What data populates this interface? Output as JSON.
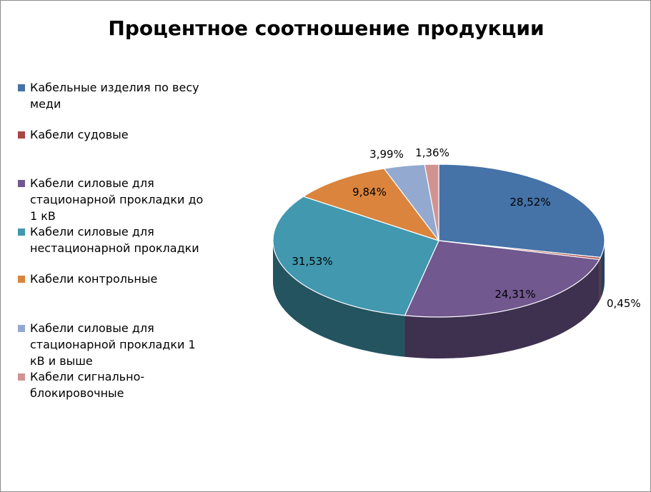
{
  "chart_data": {
    "type": "pie",
    "title": "Процентное соотношение продукции",
    "legend_position": "left",
    "slices": [
      {
        "name": "Кабельные изделия по весу меди",
        "value": 28.52,
        "label": "28,52%",
        "color": "#4572A7"
      },
      {
        "name": "Кабели судовые",
        "value": 0.45,
        "label": "0,45%",
        "color": "#AA4643"
      },
      {
        "name": "Кабели силовые для стационарной прокладки до 1 кВ",
        "value": 24.31,
        "label": "24,31%",
        "color": "#71588F"
      },
      {
        "name": "Кабели силовые для нестационарной прокладки",
        "value": 31.53,
        "label": "31,53%",
        "color": "#4198AF"
      },
      {
        "name": "Кабели контрольные",
        "value": 9.84,
        "label": "9,84%",
        "color": "#DB843D"
      },
      {
        "name": "Кабели силовые для стационарной прокладки 1 кВ и выше",
        "value": 3.99,
        "label": "3,99%",
        "color": "#93A9CF"
      },
      {
        "name": "Кабели сигнально-блокировочные",
        "value": 1.36,
        "label": "1,36%",
        "color": "#D19392"
      }
    ]
  }
}
